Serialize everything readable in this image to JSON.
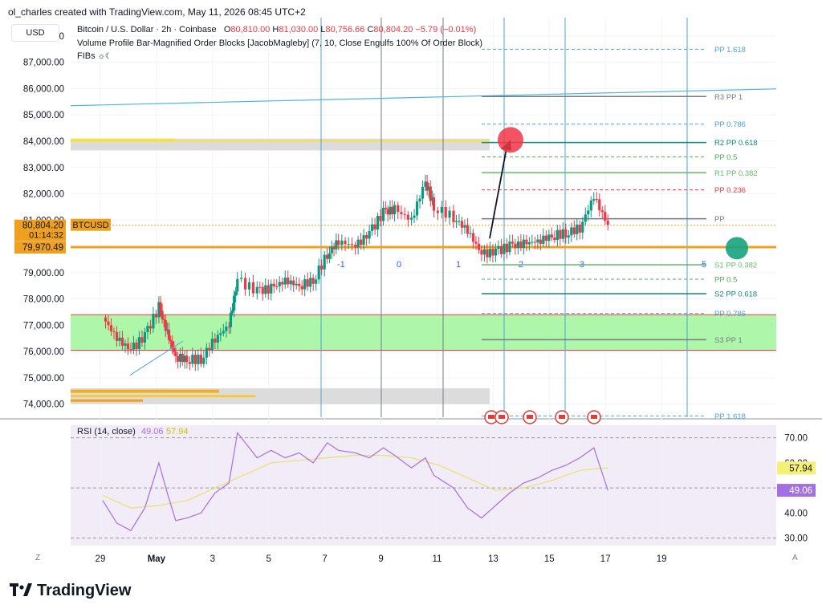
{
  "watermark": "ol_charles created with TradingView.com, May 11, 2026 08:45 UTC+2",
  "currency_button": "USD",
  "symbol": {
    "title": "Bitcoin / U.S. Dollar · 2h · Coinbase",
    "open_label": "O",
    "open": "80,810.00",
    "high_label": "H",
    "high": "81,030.00",
    "low_label": "L",
    "low": "80,756.66",
    "close_label": "C",
    "close": "80,804.20",
    "change": "−5.79 (−0.01%)"
  },
  "indicators": [
    "Volume Profile Bar-Magnified Order Blocks [JacobMagleby] (7, 10, Close Engulfs 100% Of Order Block)",
    "FIBs"
  ],
  "brand": "TradingView",
  "colors": {
    "up": "#089981",
    "down": "#f23645",
    "green_zone": "#a5f5a0",
    "orange": "#f0a020",
    "blue_line": "#4aa3df",
    "rsi": "#a46fe0",
    "rsi_ma": "#e8e36a"
  },
  "chart_data": [
    {
      "type": "candlestick",
      "title": "Bitcoin / U.S. Dollar · 2h · Coinbase",
      "y_ticks": [
        "88,000.00",
        "87,000.00",
        "86,000.00",
        "85,000.00",
        "84,000.00",
        "83,000.00",
        "82,000.00",
        "81,000.00",
        "79,000.00",
        "78,000.00",
        "77,000.00",
        "76,000.00",
        "75,000.00",
        "74,000.00"
      ],
      "ylim": [
        73500,
        88700
      ],
      "x_ticks": [
        "29",
        "May",
        "3",
        "5",
        "7",
        "9",
        "11",
        "13",
        "15",
        "17",
        "19"
      ],
      "x_domain_days": [
        0,
        24
      ],
      "price_tags": {
        "symbol_label": "BTCUSD",
        "last_price": "80,804.20",
        "countdown": "01:14:32",
        "level_price": "79,970.49"
      },
      "last_price_value": 80804.2,
      "level_price_value": 79970.49,
      "close_path": [
        [
          0,
          77300
        ],
        [
          0.5,
          76500
        ],
        [
          1,
          76050
        ],
        [
          1.5,
          76600
        ],
        [
          2,
          77700
        ],
        [
          2.3,
          76700
        ],
        [
          2.6,
          75800
        ],
        [
          3,
          75700
        ],
        [
          3.5,
          75700
        ],
        [
          4,
          76500
        ],
        [
          4.5,
          77000
        ],
        [
          4.8,
          78700
        ],
        [
          5.5,
          78300
        ],
        [
          6,
          78400
        ],
        [
          6.5,
          78700
        ],
        [
          7,
          78500
        ],
        [
          7.5,
          78700
        ],
        [
          8,
          79700
        ],
        [
          8.4,
          80200
        ],
        [
          9,
          80000
        ],
        [
          9.5,
          80500
        ],
        [
          10,
          81300
        ],
        [
          10.4,
          81400
        ],
        [
          11,
          81000
        ],
        [
          11.5,
          82500
        ],
        [
          11.8,
          81500
        ],
        [
          12.5,
          81100
        ],
        [
          13,
          80600
        ],
        [
          13.5,
          79700
        ],
        [
          14,
          79800
        ],
        [
          14.5,
          80000
        ],
        [
          15,
          80100
        ],
        [
          15.5,
          80200
        ],
        [
          16,
          80400
        ],
        [
          16.5,
          80500
        ],
        [
          17,
          80700
        ],
        [
          17.5,
          81900
        ],
        [
          18,
          80800
        ]
      ],
      "pivots": [
        {
          "label": "R3 PP 1",
          "value": 85700
        },
        {
          "label": "PP 0.786",
          "value": 84650
        },
        {
          "label": "R2 PP 0.618",
          "value": 83950
        },
        {
          "label": "PP 0.5",
          "value": 83400
        },
        {
          "label": "R1 PP 0.382",
          "value": 82800
        },
        {
          "label": "PP 0.236",
          "value": 82150
        },
        {
          "label": "PP",
          "value": 81050
        },
        {
          "label": "S1 PP 0.382",
          "value": 79300
        },
        {
          "label": "PP 0.5",
          "value": 78750
        },
        {
          "label": "S2 PP 0.618",
          "value": 78200
        },
        {
          "label": "PP 0.786",
          "value": 77450
        },
        {
          "label": "S3 PP 1",
          "value": 76450
        },
        {
          "label": "PP 1.618",
          "value": 87500
        },
        {
          "label": "PP 1.618",
          "value": 73550
        }
      ],
      "zones": [
        {
          "from": 76050,
          "to": 77400,
          "color": "#a5f5a0"
        },
        {
          "from": 83650,
          "to": 84100,
          "color": "#d8d8d8"
        }
      ],
      "cycle_labels": [
        "-1",
        "0",
        "1",
        "2",
        "3",
        "5"
      ]
    },
    {
      "type": "line",
      "title": "RSI (14, close)",
      "rsi_value": "49.06",
      "ma_value": "57.94",
      "y_ticks": [
        "70.00",
        "60.00",
        "40.00",
        "30.00"
      ],
      "ylim": [
        27,
        75
      ],
      "rsi": [
        [
          0,
          45
        ],
        [
          0.5,
          36
        ],
        [
          1,
          33
        ],
        [
          1.5,
          42
        ],
        [
          2,
          60
        ],
        [
          2.3,
          48
        ],
        [
          2.6,
          37
        ],
        [
          3,
          38
        ],
        [
          3.5,
          40
        ],
        [
          4,
          48
        ],
        [
          4.5,
          52
        ],
        [
          4.8,
          72
        ],
        [
          5.5,
          62
        ],
        [
          6,
          65
        ],
        [
          6.5,
          62
        ],
        [
          7,
          64
        ],
        [
          7.5,
          60
        ],
        [
          8,
          68
        ],
        [
          8.4,
          65
        ],
        [
          9,
          64
        ],
        [
          9.5,
          62
        ],
        [
          10,
          66
        ],
        [
          10.4,
          63
        ],
        [
          11,
          58
        ],
        [
          11.5,
          62
        ],
        [
          11.8,
          55
        ],
        [
          12.5,
          50
        ],
        [
          13,
          42
        ],
        [
          13.5,
          38
        ],
        [
          14,
          43
        ],
        [
          14.5,
          48
        ],
        [
          15,
          52
        ],
        [
          15.5,
          54
        ],
        [
          16,
          57
        ],
        [
          16.5,
          59
        ],
        [
          17,
          62
        ],
        [
          17.5,
          66
        ],
        [
          18,
          49
        ]
      ],
      "ma": [
        [
          0,
          47
        ],
        [
          1,
          42
        ],
        [
          2,
          43
        ],
        [
          3,
          45
        ],
        [
          4,
          50
        ],
        [
          5,
          55
        ],
        [
          6,
          60
        ],
        [
          7,
          61
        ],
        [
          8,
          62
        ],
        [
          9,
          63
        ],
        [
          10,
          63
        ],
        [
          11,
          62
        ],
        [
          12,
          59
        ],
        [
          13,
          54
        ],
        [
          14,
          49
        ],
        [
          15,
          50
        ],
        [
          16,
          53
        ],
        [
          17,
          57
        ],
        [
          18,
          58
        ]
      ]
    }
  ]
}
